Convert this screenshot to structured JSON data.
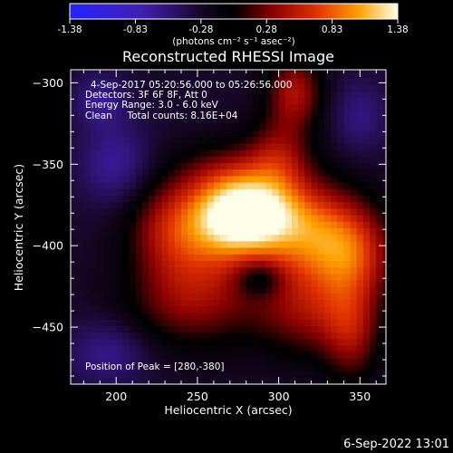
{
  "chart_data": {
    "type": "heatmap",
    "title": "Reconstructed RHESSI Image",
    "xlabel": "Heliocentric X (arcsec)",
    "ylabel": "Heliocentric Y (arcsec)",
    "xlim": [
      172,
      366
    ],
    "ylim": [
      -485,
      -292
    ],
    "x_ticks": [
      200,
      250,
      300,
      350
    ],
    "y_ticks": [
      -300,
      -350,
      -400,
      -450
    ],
    "colorbar": {
      "units": "(photons cm⁻² s⁻¹ asec⁻²)",
      "range": [
        -1.38,
        1.38
      ],
      "ticks": [
        "-1.38",
        "-0.83",
        "-0.28",
        "0.28",
        "0.83",
        "1.38"
      ],
      "colormap": "blue-black-red-yellow-white"
    },
    "annotations": [
      "4-Sep-2017 05:20:56.000 to 05:26:56.000",
      "Detectors: 3F 6F 8F, Att 0",
      "Energy Range: 3.0 - 6.0 keV",
      "Clean     Total counts: 8.16E+04"
    ],
    "peak_label": "Position of Peak = [280,-380]",
    "peak": [
      280,
      -380
    ],
    "components": [
      {
        "x": 278,
        "y": -380,
        "amp": 1.38,
        "sx": 20,
        "sy": 15
      },
      {
        "x": 315,
        "y": -390,
        "amp": 1.0,
        "sx": 25,
        "sy": 22
      },
      {
        "x": 345,
        "y": -405,
        "amp": 0.75,
        "sx": 18,
        "sy": 20
      },
      {
        "x": 255,
        "y": -395,
        "amp": 0.7,
        "sx": 25,
        "sy": 22
      },
      {
        "x": 230,
        "y": -385,
        "amp": 0.4,
        "sx": 18,
        "sy": 22
      },
      {
        "x": 300,
        "y": -345,
        "amp": 0.55,
        "sx": 14,
        "sy": 18
      },
      {
        "x": 310,
        "y": -305,
        "amp": 0.7,
        "sx": 12,
        "sy": 16
      },
      {
        "x": 270,
        "y": -355,
        "amp": 0.45,
        "sx": 22,
        "sy": 14
      },
      {
        "x": 245,
        "y": -435,
        "amp": 0.55,
        "sx": 28,
        "sy": 20
      },
      {
        "x": 320,
        "y": -440,
        "amp": 0.6,
        "sx": 25,
        "sy": 20
      },
      {
        "x": 345,
        "y": -455,
        "amp": 0.5,
        "sx": 12,
        "sy": 22
      },
      {
        "x": 288,
        "y": -420,
        "amp": -0.45,
        "sx": 10,
        "sy": 8
      },
      {
        "x": 200,
        "y": -350,
        "amp": -0.4,
        "sx": 16,
        "sy": 18
      },
      {
        "x": 190,
        "y": -310,
        "amp": -0.35,
        "sx": 12,
        "sy": 12
      },
      {
        "x": 195,
        "y": -465,
        "amp": -0.35,
        "sx": 18,
        "sy": 14
      },
      {
        "x": 350,
        "y": -320,
        "amp": -0.3,
        "sx": 12,
        "sy": 16
      }
    ]
  },
  "footer": {
    "timestamp": "6-Sep-2022 13:01"
  }
}
